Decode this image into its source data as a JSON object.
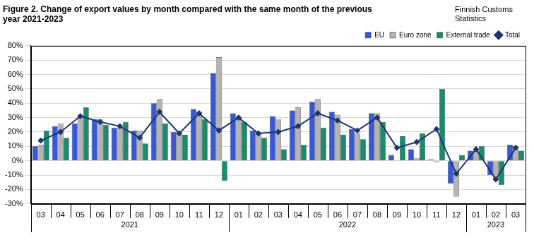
{
  "chart_data": {
    "type": "bar",
    "title": [
      "Figure 2. Change of export values by month compared with the same month of the previous",
      "year 2021-2023"
    ],
    "source": [
      "Finnish Customs",
      "Statistics"
    ],
    "categories": [
      "03",
      "04",
      "05",
      "06",
      "07",
      "08",
      "09",
      "10",
      "11",
      "12",
      "01",
      "02",
      "03",
      "04",
      "05",
      "06",
      "07",
      "08",
      "09",
      "10",
      "11",
      "12",
      "01",
      "02",
      "03"
    ],
    "category_groups": [
      "2021",
      "2021",
      "2021",
      "2021",
      "2021",
      "2021",
      "2021",
      "2021",
      "2021",
      "2021",
      "2022",
      "2022",
      "2022",
      "2022",
      "2022",
      "2022",
      "2022",
      "2022",
      "2022",
      "2022",
      "2022",
      "2022",
      "2023",
      "2023",
      "2023"
    ],
    "series": [
      {
        "name": "EU",
        "color": "#3858d6",
        "values": [
          10,
          24,
          26,
          29,
          23,
          21,
          40,
          20,
          36,
          61,
          33,
          21,
          31,
          35,
          41,
          34,
          22,
          33,
          4,
          8,
          1,
          -16,
          7,
          -10,
          11
        ]
      },
      {
        "name": "Euro zone",
        "color": "#b4b4b4",
        "values": [
          11,
          26,
          30,
          29,
          23,
          21,
          43,
          19,
          34,
          72,
          30,
          19,
          29,
          37,
          43,
          32,
          19,
          33,
          0,
          2,
          -1,
          -25,
          7,
          -13,
          10
        ]
      },
      {
        "name": "External trade",
        "color": "#1a8c6c",
        "values": [
          21,
          16,
          37,
          25,
          27,
          12,
          26,
          18,
          29,
          -14,
          27,
          16,
          8,
          11,
          23,
          18,
          15,
          27,
          17,
          19,
          50,
          4,
          10,
          -17,
          7
        ]
      },
      {
        "name": "Total",
        "color": "#1c3470",
        "type": "line",
        "marker": "diamond",
        "values": [
          14,
          20,
          31,
          27,
          24,
          16,
          34,
          19,
          33,
          21,
          30,
          19,
          20,
          24,
          33,
          28,
          21,
          30,
          9,
          13,
          22,
          -9,
          8,
          -13,
          9
        ]
      }
    ],
    "ylim": [
      -30,
      80
    ],
    "yticks": [
      {
        "value": -30,
        "label": "-30%"
      },
      {
        "value": -20,
        "label": "-20%"
      },
      {
        "value": -10,
        "label": "-10%"
      },
      {
        "value": 0,
        "label": "0%"
      },
      {
        "value": 10,
        "label": "10%"
      },
      {
        "value": 20,
        "label": "20%"
      },
      {
        "value": 30,
        "label": "30%"
      },
      {
        "value": 40,
        "label": "40%"
      },
      {
        "value": 50,
        "label": "50%"
      },
      {
        "value": 60,
        "label": "60%"
      },
      {
        "value": 70,
        "label": "70%"
      },
      {
        "value": 80,
        "label": "80%"
      }
    ],
    "grid": true,
    "legend": "top-right"
  }
}
